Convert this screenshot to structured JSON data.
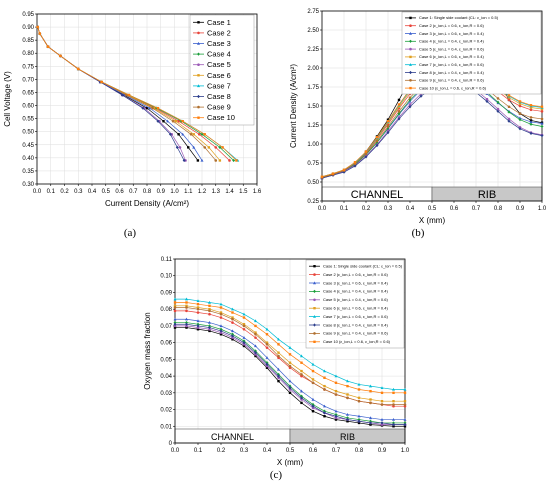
{
  "panel_labels": [
    "(a)",
    "(b)",
    "(c)"
  ],
  "colors": [
    "#000000",
    "#e8443a",
    "#3a5fcd",
    "#1a9e3a",
    "#9b59b6",
    "#e0a020",
    "#00bcd4",
    "#2c3e8c",
    "#b07030",
    "#ff7f0e"
  ],
  "chart_data": [
    {
      "type": "line",
      "xlabel": "Current Density (A/cm²)",
      "ylabel": "Cell Voltage (V)",
      "xlim": [
        0.0,
        1.6
      ],
      "ylim": [
        0.3,
        0.95
      ],
      "xticks": [
        "0.0",
        "0.1",
        "0.2",
        "0.3",
        "0.4",
        "0.5",
        "0.6",
        "0.7",
        "0.8",
        "0.9",
        "1.0",
        "1.1",
        "1.2",
        "1.3",
        "1.4",
        "1.5",
        "1.6"
      ],
      "yticks": [
        "0.30",
        "0.35",
        "0.40",
        "0.45",
        "0.50",
        "0.55",
        "0.60",
        "0.65",
        "0.70",
        "0.75",
        "0.80",
        "0.85",
        "0.90",
        "0.95"
      ],
      "legend_position": "top-right",
      "grid": true,
      "voltages": [
        0.9,
        0.875,
        0.825,
        0.79,
        0.74,
        0.69,
        0.64,
        0.59,
        0.54,
        0.49,
        0.44,
        0.39
      ],
      "series": [
        {
          "name": "Case 1",
          "x": [
            0.005,
            0.02,
            0.08,
            0.17,
            0.3,
            0.46,
            0.63,
            0.8,
            0.92,
            1.03,
            1.1,
            1.17
          ]
        },
        {
          "name": "Case 2",
          "x": [
            0.005,
            0.02,
            0.08,
            0.17,
            0.3,
            0.47,
            0.66,
            0.86,
            1.03,
            1.18,
            1.3,
            1.4
          ]
        },
        {
          "name": "Case 3",
          "x": [
            0.005,
            0.02,
            0.08,
            0.17,
            0.3,
            0.46,
            0.64,
            0.82,
            0.95,
            1.06,
            1.14,
            1.2
          ]
        },
        {
          "name": "Case 4",
          "x": [
            0.005,
            0.02,
            0.08,
            0.17,
            0.3,
            0.47,
            0.67,
            0.87,
            1.05,
            1.2,
            1.33,
            1.43
          ]
        },
        {
          "name": "Case 5",
          "x": [
            0.005,
            0.02,
            0.08,
            0.17,
            0.3,
            0.46,
            0.62,
            0.78,
            0.89,
            0.98,
            1.04,
            1.08
          ]
        },
        {
          "name": "Case 6",
          "x": [
            0.005,
            0.02,
            0.08,
            0.17,
            0.3,
            0.47,
            0.66,
            0.85,
            1.01,
            1.14,
            1.25,
            1.33
          ]
        },
        {
          "name": "Case 7",
          "x": [
            0.005,
            0.02,
            0.08,
            0.17,
            0.3,
            0.47,
            0.67,
            0.88,
            1.06,
            1.22,
            1.35,
            1.46
          ]
        },
        {
          "name": "Case 8",
          "x": [
            0.005,
            0.02,
            0.08,
            0.17,
            0.3,
            0.46,
            0.62,
            0.77,
            0.88,
            0.97,
            1.02,
            1.07
          ]
        },
        {
          "name": "Case 9",
          "x": [
            0.005,
            0.02,
            0.08,
            0.17,
            0.3,
            0.47,
            0.65,
            0.84,
            0.99,
            1.12,
            1.22,
            1.3
          ]
        },
        {
          "name": "Case 10",
          "x": [
            0.005,
            0.02,
            0.08,
            0.17,
            0.3,
            0.47,
            0.67,
            0.88,
            1.06,
            1.22,
            1.35,
            1.45
          ]
        }
      ]
    },
    {
      "type": "line",
      "xlabel": "X (mm)",
      "ylabel": "Current Density (A/cm²)",
      "xlim": [
        0.0,
        1.0
      ],
      "ylim": [
        0.25,
        2.75
      ],
      "xticks": [
        "0.0",
        "0.1",
        "0.2",
        "0.3",
        "0.4",
        "0.5",
        "0.6",
        "0.7",
        "0.8",
        "0.9",
        "1.0"
      ],
      "yticks": [
        "0.25",
        "0.50",
        "0.75",
        "1.00",
        "1.25",
        "1.50",
        "1.75",
        "2.00",
        "2.25",
        "2.50",
        "2.75"
      ],
      "region_labels": [
        "CHANNEL",
        "RIB"
      ],
      "region_split": 0.5,
      "legend_position": "top-right",
      "x": [
        0.0,
        0.05,
        0.1,
        0.15,
        0.2,
        0.25,
        0.3,
        0.35,
        0.4,
        0.45,
        0.5,
        0.55,
        0.6,
        0.65,
        0.7,
        0.75,
        0.8,
        0.85,
        0.9,
        0.95,
        1.0
      ],
      "series": [
        {
          "name": "Case 1: Single side coolant (CL: ε_ion = 0.5)",
          "values": [
            0.55,
            0.6,
            0.64,
            0.74,
            0.9,
            1.1,
            1.32,
            1.58,
            1.85,
            2.12,
            2.38,
            2.52,
            2.57,
            2.52,
            2.38,
            2.12,
            1.85,
            1.58,
            1.4,
            1.31,
            1.28
          ]
        },
        {
          "name": "Case 2 (ε_ion,L = 0.6, ε_ion,R = 0.6)",
          "values": [
            0.56,
            0.6,
            0.65,
            0.74,
            0.88,
            1.06,
            1.26,
            1.47,
            1.66,
            1.82,
            1.94,
            2.02,
            2.04,
            2.0,
            1.92,
            1.81,
            1.69,
            1.58,
            1.5,
            1.45,
            1.43
          ]
        },
        {
          "name": "Case 3 (ε_ion,L = 0.6, ε_ion,R = 0.4)",
          "values": [
            0.56,
            0.6,
            0.65,
            0.73,
            0.86,
            1.02,
            1.2,
            1.39,
            1.56,
            1.71,
            1.82,
            1.89,
            1.9,
            1.86,
            1.78,
            1.66,
            1.54,
            1.43,
            1.34,
            1.29,
            1.27
          ]
        },
        {
          "name": "Case 4 (ε_ion,L = 0.4, ε_ion,R = 0.4)",
          "values": [
            0.56,
            0.6,
            0.64,
            0.73,
            0.86,
            1.02,
            1.21,
            1.4,
            1.58,
            1.73,
            1.84,
            1.91,
            1.92,
            1.88,
            1.8,
            1.68,
            1.55,
            1.42,
            1.32,
            1.26,
            1.23
          ]
        },
        {
          "name": "Case 5 (ε_ion,L = 0.4, ε_ion,R = 0.6)",
          "values": [
            0.55,
            0.59,
            0.64,
            0.72,
            0.84,
            0.99,
            1.17,
            1.35,
            1.52,
            1.66,
            1.76,
            1.82,
            1.83,
            1.79,
            1.71,
            1.59,
            1.46,
            1.33,
            1.22,
            1.15,
            1.12
          ]
        },
        {
          "name": "Case 6 (ε_ion,L = 0.6, ε_ion,R = 0.4)",
          "values": [
            0.57,
            0.61,
            0.66,
            0.75,
            0.89,
            1.07,
            1.28,
            1.49,
            1.69,
            1.86,
            1.98,
            2.05,
            2.07,
            2.03,
            1.95,
            1.84,
            1.72,
            1.61,
            1.53,
            1.48,
            1.46
          ]
        },
        {
          "name": "Case 7 (ε_ion,L = 0.6, ε_ion,R = 0.6)",
          "values": [
            0.57,
            0.61,
            0.66,
            0.75,
            0.89,
            1.08,
            1.29,
            1.51,
            1.71,
            1.88,
            2.0,
            2.07,
            2.09,
            2.05,
            1.97,
            1.86,
            1.74,
            1.63,
            1.55,
            1.5,
            1.48
          ]
        },
        {
          "name": "Case 8 (ε_ion,L = 0.4, ε_ion,R = 0.4)",
          "values": [
            0.55,
            0.59,
            0.63,
            0.71,
            0.83,
            0.98,
            1.15,
            1.33,
            1.49,
            1.63,
            1.73,
            1.79,
            1.8,
            1.76,
            1.68,
            1.56,
            1.43,
            1.3,
            1.2,
            1.14,
            1.11
          ]
        },
        {
          "name": "Case 9 (ε_ion,L = 0.4, ε_ion,R = 0.6)",
          "values": [
            0.56,
            0.6,
            0.65,
            0.74,
            0.87,
            1.04,
            1.23,
            1.43,
            1.61,
            1.76,
            1.87,
            1.94,
            1.95,
            1.91,
            1.83,
            1.72,
            1.6,
            1.49,
            1.4,
            1.35,
            1.33
          ]
        },
        {
          "name": "Case 10 (ε_ion,L = 0.6, ε_ion,R = 0.6)",
          "values": [
            0.57,
            0.61,
            0.66,
            0.76,
            0.9,
            1.09,
            1.3,
            1.52,
            1.72,
            1.89,
            2.01,
            2.08,
            2.1,
            2.06,
            1.98,
            1.87,
            1.75,
            1.64,
            1.56,
            1.51,
            1.49
          ]
        }
      ]
    },
    {
      "type": "line",
      "xlabel": "X (mm)",
      "ylabel": "Oxygen mass fraction",
      "xlim": [
        0.0,
        1.0
      ],
      "ylim": [
        0.0,
        0.11
      ],
      "xticks": [
        "0.0",
        "0.1",
        "0.2",
        "0.3",
        "0.4",
        "0.5",
        "0.6",
        "0.7",
        "0.8",
        "0.9",
        "1.0"
      ],
      "yticks": [
        "0",
        "0.01",
        "0.02",
        "0.03",
        "0.04",
        "0.05",
        "0.06",
        "0.07",
        "0.08",
        "0.09",
        "0.10",
        "0.11"
      ],
      "region_labels": [
        "CHANNEL",
        "RIB"
      ],
      "region_split": 0.5,
      "legend_position": "top-right",
      "x": [
        0.0,
        0.05,
        0.1,
        0.15,
        0.2,
        0.25,
        0.3,
        0.35,
        0.4,
        0.45,
        0.5,
        0.55,
        0.6,
        0.65,
        0.7,
        0.75,
        0.8,
        0.85,
        0.9,
        0.95,
        1.0
      ],
      "series": [
        {
          "name": "Case 1: Single side coolant (CL: ε_ion = 0.5)",
          "values": [
            0.069,
            0.069,
            0.068,
            0.067,
            0.065,
            0.062,
            0.058,
            0.052,
            0.045,
            0.037,
            0.03,
            0.024,
            0.019,
            0.016,
            0.014,
            0.013,
            0.012,
            0.011,
            0.0105,
            0.01,
            0.01
          ]
        },
        {
          "name": "Case 2 (ε_ion,L = 0.6, ε_ion,R = 0.6)",
          "values": [
            0.079,
            0.079,
            0.078,
            0.077,
            0.075,
            0.072,
            0.068,
            0.063,
            0.057,
            0.051,
            0.045,
            0.04,
            0.036,
            0.032,
            0.029,
            0.027,
            0.025,
            0.024,
            0.023,
            0.022,
            0.022
          ]
        },
        {
          "name": "Case 3 (ε_ion,L = 0.6, ε_ion,R = 0.4)",
          "values": [
            0.074,
            0.074,
            0.073,
            0.072,
            0.07,
            0.067,
            0.063,
            0.058,
            0.051,
            0.044,
            0.037,
            0.031,
            0.026,
            0.022,
            0.019,
            0.017,
            0.016,
            0.015,
            0.014,
            0.014,
            0.014
          ]
        },
        {
          "name": "Case 4 (ε_ion,L = 0.4, ε_ion,R = 0.4)",
          "values": [
            0.072,
            0.072,
            0.071,
            0.07,
            0.068,
            0.065,
            0.061,
            0.055,
            0.048,
            0.041,
            0.034,
            0.028,
            0.023,
            0.019,
            0.017,
            0.015,
            0.014,
            0.013,
            0.012,
            0.012,
            0.012
          ]
        },
        {
          "name": "Case 5 (ε_ion,L = 0.4, ε_ion,R = 0.6)",
          "values": [
            0.07,
            0.07,
            0.069,
            0.068,
            0.066,
            0.063,
            0.059,
            0.053,
            0.046,
            0.039,
            0.032,
            0.026,
            0.021,
            0.018,
            0.015,
            0.014,
            0.013,
            0.012,
            0.011,
            0.011,
            0.011
          ]
        },
        {
          "name": "Case 6 (ε_ion,L = 0.6, ε_ion,R = 0.4)",
          "values": [
            0.082,
            0.082,
            0.081,
            0.08,
            0.078,
            0.075,
            0.071,
            0.066,
            0.06,
            0.054,
            0.048,
            0.043,
            0.038,
            0.034,
            0.031,
            0.029,
            0.027,
            0.026,
            0.025,
            0.025,
            0.025
          ]
        },
        {
          "name": "Case 7 (ε_ion,L = 0.6, ε_ion,R = 0.6)",
          "values": [
            0.086,
            0.086,
            0.085,
            0.084,
            0.083,
            0.08,
            0.077,
            0.073,
            0.068,
            0.062,
            0.057,
            0.052,
            0.047,
            0.043,
            0.04,
            0.037,
            0.035,
            0.034,
            0.033,
            0.032,
            0.032
          ]
        },
        {
          "name": "Case 8 (ε_ion,L = 0.4, ε_ion,R = 0.4)",
          "values": [
            0.071,
            0.071,
            0.07,
            0.069,
            0.067,
            0.064,
            0.06,
            0.054,
            0.047,
            0.04,
            0.033,
            0.027,
            0.022,
            0.018,
            0.016,
            0.014,
            0.013,
            0.012,
            0.012,
            0.011,
            0.011
          ]
        },
        {
          "name": "Case 9 (ε_ion,L = 0.4, ε_ion,R = 0.6)",
          "values": [
            0.081,
            0.081,
            0.08,
            0.079,
            0.077,
            0.074,
            0.07,
            0.065,
            0.059,
            0.052,
            0.046,
            0.041,
            0.036,
            0.032,
            0.029,
            0.027,
            0.025,
            0.024,
            0.023,
            0.023,
            0.023
          ]
        },
        {
          "name": "Case 10 (ε_ion,L = 0.6, ε_ion,R = 0.6)",
          "values": [
            0.084,
            0.084,
            0.083,
            0.082,
            0.081,
            0.078,
            0.075,
            0.07,
            0.065,
            0.059,
            0.053,
            0.048,
            0.043,
            0.039,
            0.036,
            0.034,
            0.032,
            0.031,
            0.03,
            0.03,
            0.03
          ]
        }
      ]
    }
  ]
}
